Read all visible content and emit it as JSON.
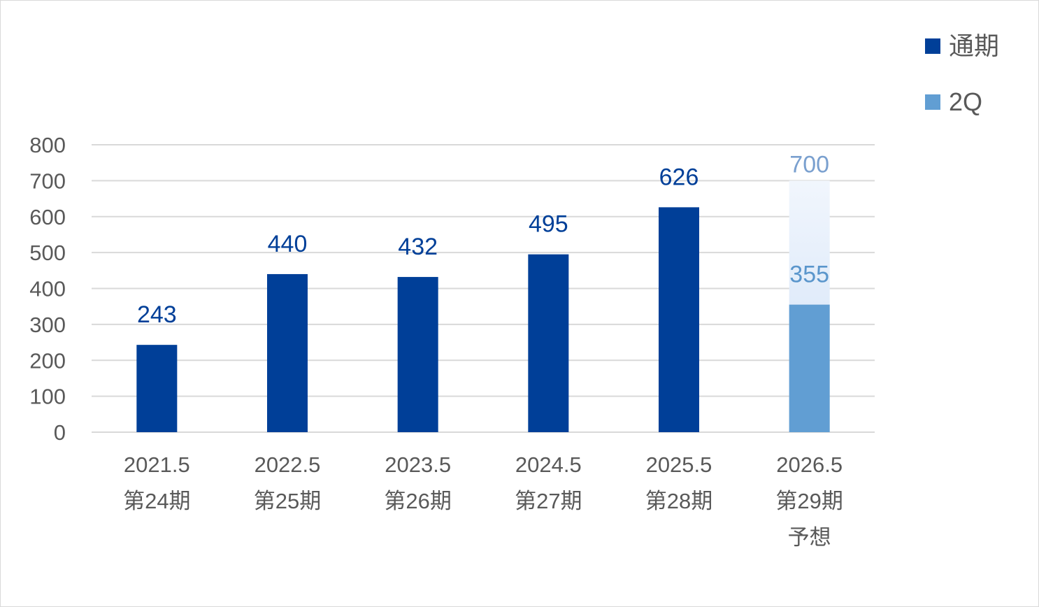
{
  "chart_data": {
    "type": "bar",
    "categories": [
      [
        "2021.5",
        "第24期"
      ],
      [
        "2022.5",
        "第25期"
      ],
      [
        "2023.5",
        "第26期"
      ],
      [
        "2024.5",
        "第27期"
      ],
      [
        "2025.5",
        "第28期"
      ],
      [
        "2026.5",
        "第29期",
        "予想"
      ]
    ],
    "series": [
      {
        "name": "通期",
        "values": [
          243,
          440,
          432,
          495,
          626,
          700
        ],
        "forecast_index": 5
      },
      {
        "name": "2Q",
        "values": [
          null,
          null,
          null,
          null,
          null,
          355
        ]
      }
    ],
    "data_labels": [
      "243",
      "440",
      "432",
      "495",
      "626",
      "700",
      "355"
    ],
    "ylim": [
      0,
      800
    ],
    "yticks": [
      0,
      100,
      200,
      300,
      400,
      500,
      600,
      700,
      800
    ],
    "grid": true,
    "legend_position": "top-right",
    "colors": {
      "full_year": "#003f98",
      "q2": "#619ed3",
      "forecast_fill": "#dde9f9",
      "forecast_label": "#7aa0cf",
      "q2_label": "#5a96cc",
      "grid": "#d9d9d9",
      "axis_text": "#595959"
    }
  }
}
